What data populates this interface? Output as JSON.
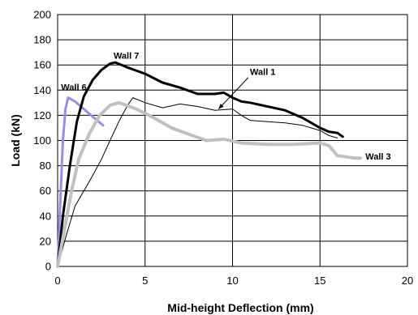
{
  "chart_data": {
    "type": "line",
    "title": "",
    "xlabel": "Mid-height Deflection (mm)",
    "ylabel": "Load (kN)",
    "xlim": [
      0,
      20
    ],
    "ylim": [
      0,
      200
    ],
    "x_ticks": [
      "0",
      "5",
      "10",
      "15",
      "20"
    ],
    "y_ticks": [
      "0",
      "20",
      "40",
      "60",
      "80",
      "100",
      "120",
      "140",
      "160",
      "180",
      "200"
    ],
    "grid": true,
    "legend": "none",
    "series": [
      {
        "name": "Wall 6",
        "color": "#9a8cec",
        "points": [
          [
            0,
            0
          ],
          [
            0.15,
            50
          ],
          [
            0.3,
            100
          ],
          [
            0.45,
            125
          ],
          [
            0.6,
            134
          ],
          [
            1.0,
            131
          ],
          [
            1.5,
            125
          ],
          [
            2.0,
            119
          ],
          [
            2.6,
            112
          ]
        ]
      },
      {
        "name": "Wall 7",
        "color": "#000000",
        "points": [
          [
            0,
            0
          ],
          [
            0.3,
            40
          ],
          [
            0.7,
            80
          ],
          [
            1.1,
            115
          ],
          [
            1.5,
            135
          ],
          [
            2.0,
            148
          ],
          [
            2.5,
            156
          ],
          [
            3.0,
            161
          ],
          [
            3.3,
            162
          ],
          [
            4,
            158
          ],
          [
            5,
            153
          ],
          [
            6,
            146
          ],
          [
            7,
            142
          ],
          [
            8,
            137
          ],
          [
            9,
            137
          ],
          [
            9.5,
            138
          ],
          [
            10,
            134
          ],
          [
            10.5,
            131
          ],
          [
            11,
            130
          ],
          [
            12,
            127
          ],
          [
            13,
            124
          ],
          [
            14,
            118
          ],
          [
            15,
            110
          ],
          [
            15.5,
            107
          ],
          [
            16,
            106
          ],
          [
            16.3,
            103
          ]
        ]
      },
      {
        "name": "Wall 1",
        "color": "#000000",
        "points": [
          [
            0,
            0
          ],
          [
            0.5,
            25
          ],
          [
            1,
            48
          ],
          [
            1.5,
            60
          ],
          [
            2,
            72
          ],
          [
            2.5,
            85
          ],
          [
            3,
            100
          ],
          [
            3.5,
            115
          ],
          [
            4,
            128
          ],
          [
            4.3,
            134
          ],
          [
            5,
            130
          ],
          [
            6,
            126
          ],
          [
            7,
            129
          ],
          [
            8,
            127
          ],
          [
            9,
            124
          ],
          [
            10,
            125
          ],
          [
            10.5,
            120
          ],
          [
            11,
            116
          ],
          [
            12,
            115
          ],
          [
            13,
            114
          ],
          [
            14,
            112
          ],
          [
            15,
            108
          ],
          [
            15.5,
            104
          ],
          [
            16,
            102
          ]
        ]
      },
      {
        "name": "Wall 3",
        "color": "#c0c0c0",
        "points": [
          [
            0,
            0
          ],
          [
            0.4,
            30
          ],
          [
            0.8,
            60
          ],
          [
            1.2,
            85
          ],
          [
            1.8,
            105
          ],
          [
            2.4,
            120
          ],
          [
            3,
            128
          ],
          [
            3.5,
            130
          ],
          [
            4.5,
            125
          ],
          [
            5.5,
            118
          ],
          [
            6.5,
            110
          ],
          [
            7.5,
            105
          ],
          [
            8.5,
            100
          ],
          [
            9.5,
            101
          ],
          [
            10.5,
            98
          ],
          [
            12,
            97
          ],
          [
            13.5,
            97
          ],
          [
            15,
            98
          ],
          [
            15.5,
            96
          ],
          [
            16,
            88
          ],
          [
            17,
            86
          ],
          [
            17.3,
            86
          ]
        ]
      }
    ],
    "annotations": [
      {
        "text": "Wall 7",
        "x": 3.2,
        "y": 165
      },
      {
        "text": "Wall 6",
        "x": 0.2,
        "y": 140
      },
      {
        "text": "Wall 1",
        "x": 11,
        "y": 152
      },
      {
        "text": "Wall 3",
        "x": 17.6,
        "y": 85
      }
    ]
  }
}
